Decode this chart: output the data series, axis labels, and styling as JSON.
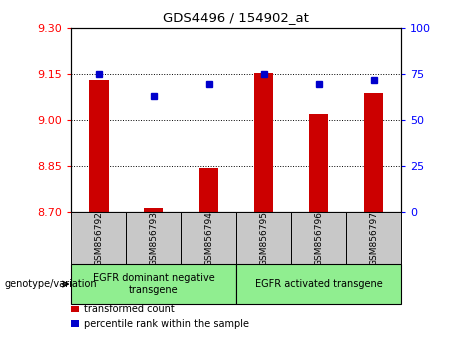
{
  "title": "GDS4496 / 154902_at",
  "samples": [
    "GSM856792",
    "GSM856793",
    "GSM856794",
    "GSM856795",
    "GSM856796",
    "GSM856797"
  ],
  "transformed_count": [
    9.13,
    8.715,
    8.845,
    9.155,
    9.02,
    9.09
  ],
  "percentile_rank": [
    75,
    63,
    70,
    75,
    70,
    72
  ],
  "ylim_left": [
    8.7,
    9.3
  ],
  "ylim_right": [
    0,
    100
  ],
  "yticks_left": [
    8.7,
    8.85,
    9.0,
    9.15,
    9.3
  ],
  "yticks_right": [
    0,
    25,
    50,
    75,
    100
  ],
  "bar_color": "#cc0000",
  "dot_color": "#0000cc",
  "group1_label": "EGFR dominant negative\ntransgene",
  "group2_label": "EGFR activated transgene",
  "genotype_label": "genotype/variation",
  "legend_bar_label": "transformed count",
  "legend_dot_label": "percentile rank within the sample",
  "group_bg_color": "#90ee90",
  "label_bg_color": "#c8c8c8",
  "bar_width": 0.35
}
